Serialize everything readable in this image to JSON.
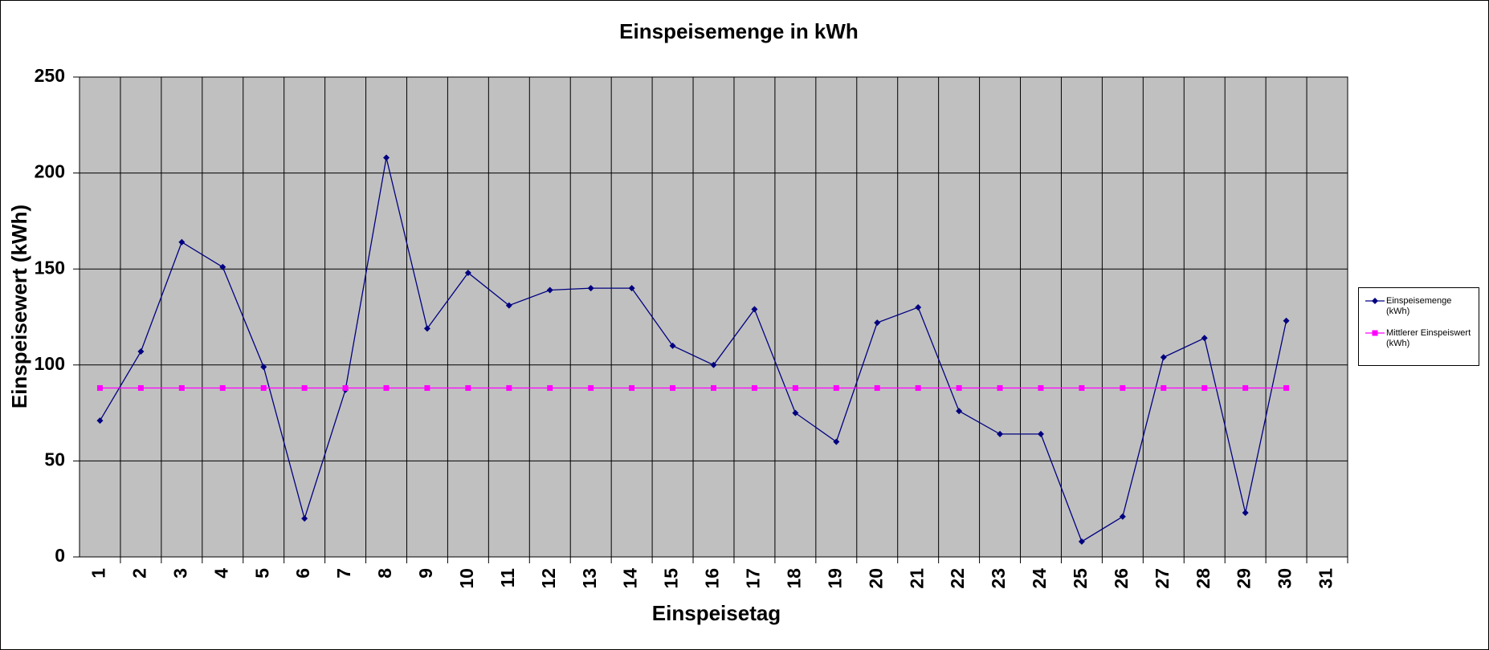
{
  "chart_data": {
    "type": "line",
    "title": "Einspeisemenge in kWh",
    "x_label": "Einspeisetag",
    "y_label": "Einspeisewert  (kWh)",
    "categories": [
      "1",
      "2",
      "3",
      "4",
      "5",
      "6",
      "7",
      "8",
      "9",
      "10",
      "11",
      "12",
      "13",
      "14",
      "15",
      "16",
      "17",
      "18",
      "19",
      "20",
      "21",
      "22",
      "23",
      "24",
      "25",
      "26",
      "27",
      "28",
      "29",
      "30",
      "31"
    ],
    "series": [
      {
        "name": "Einspeisemenge (kWh)",
        "color": "#000080",
        "marker": "diamond",
        "values": [
          71,
          107,
          164,
          151,
          99,
          20,
          87,
          208,
          119,
          148,
          131,
          139,
          140,
          140,
          110,
          100,
          129,
          75,
          60,
          122,
          130,
          76,
          64,
          64,
          8,
          21,
          104,
          114,
          23,
          123,
          null
        ]
      },
      {
        "name": "Mittlerer Einspeiswert (kWh)",
        "color": "#ff00ff",
        "marker": "square",
        "values": [
          88,
          88,
          88,
          88,
          88,
          88,
          88,
          88,
          88,
          88,
          88,
          88,
          88,
          88,
          88,
          88,
          88,
          88,
          88,
          88,
          88,
          88,
          88,
          88,
          88,
          88,
          88,
          88,
          88,
          88,
          null
        ]
      }
    ],
    "ylim": [
      0,
      250
    ],
    "yticks": [
      0,
      50,
      100,
      150,
      200,
      250
    ],
    "grid": true,
    "legend": "right"
  }
}
